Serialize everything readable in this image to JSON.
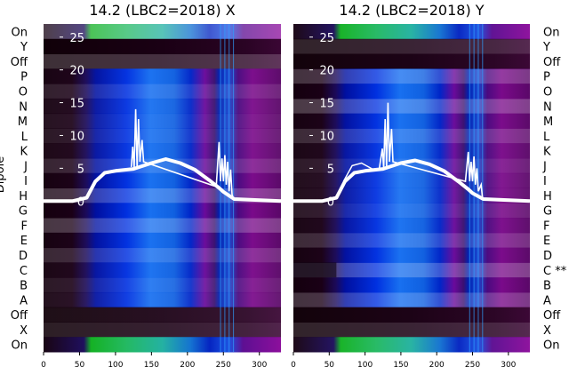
{
  "panels": [
    {
      "title": "14.2 (LBC2=2018) X",
      "row_labels": [
        "On",
        "Y",
        "Off",
        "P",
        "O",
        "N",
        "M",
        "L",
        "K",
        "J",
        "I",
        "H",
        "G",
        "F",
        "E",
        "D",
        "C",
        "B",
        "A",
        "Off",
        "X",
        "On"
      ],
      "ylabel": "Dipole"
    },
    {
      "title": "14.2 (LBC2=2018) Y",
      "row_labels": [
        "On",
        "Y",
        "Off",
        "P",
        "O",
        "N",
        "M",
        "L",
        "K",
        "J",
        "I",
        "H",
        "G",
        "F",
        "E",
        "D",
        "C **",
        "B",
        "A",
        "Off",
        "X",
        "On"
      ],
      "ylabel": ""
    }
  ],
  "colors": {
    "low": "#1a0010",
    "mid": "#0020c8",
    "high": "#20a060",
    "peak": "#10c020",
    "magenta": "#7a0a8a",
    "trace": "#ffffff"
  },
  "chart_data": [
    {
      "type": "heatmap",
      "title": "14.2 (LBC2=2018) X",
      "x_ticks": [
        0,
        50,
        100,
        150,
        200,
        250,
        300
      ],
      "y_ticks": [
        0,
        5,
        10,
        15,
        20,
        25
      ],
      "xlim": [
        0,
        330
      ],
      "ylim": [
        -23,
        27
      ],
      "overlay_thick": [
        [
          0,
          0
        ],
        [
          40,
          0
        ],
        [
          60,
          0.5
        ],
        [
          72,
          3
        ],
        [
          85,
          4.3
        ],
        [
          100,
          4.6
        ],
        [
          125,
          4.9
        ],
        [
          150,
          5.8
        ],
        [
          170,
          6.4
        ],
        [
          190,
          5.8
        ],
        [
          210,
          4.8
        ],
        [
          230,
          3.2
        ],
        [
          244,
          2
        ],
        [
          250,
          1.4
        ],
        [
          265,
          0.3
        ],
        [
          330,
          0
        ]
      ],
      "overlay_spikes": [
        [
          122,
          5.2
        ],
        [
          124,
          8.3
        ],
        [
          126,
          5
        ],
        [
          128,
          14
        ],
        [
          130,
          5
        ],
        [
          132,
          12.5
        ],
        [
          134,
          6
        ],
        [
          137,
          9.3
        ],
        [
          139,
          6
        ],
        [
          240,
          2.2
        ],
        [
          244,
          9
        ],
        [
          246,
          3
        ],
        [
          248,
          6.5
        ],
        [
          250,
          3
        ],
        [
          252,
          7
        ],
        [
          254,
          2.5
        ],
        [
          256,
          6
        ],
        [
          258,
          1.5
        ],
        [
          260,
          4.8
        ],
        [
          262,
          1
        ],
        [
          264,
          0.3
        ]
      ]
    },
    {
      "type": "heatmap",
      "title": "14.2 (LBC2=2018) Y",
      "x_ticks": [
        0,
        50,
        100,
        150,
        200,
        250,
        300
      ],
      "y_ticks": [
        0,
        5,
        10,
        15,
        20,
        25
      ],
      "xlim": [
        0,
        330
      ],
      "ylim": [
        -23,
        27
      ],
      "overlay_thick": [
        [
          0,
          0
        ],
        [
          40,
          0
        ],
        [
          60,
          0.5
        ],
        [
          72,
          3
        ],
        [
          85,
          4.3
        ],
        [
          100,
          4.6
        ],
        [
          125,
          4.9
        ],
        [
          150,
          5.8
        ],
        [
          170,
          6.2
        ],
        [
          190,
          5.6
        ],
        [
          210,
          4.6
        ],
        [
          230,
          3
        ],
        [
          244,
          1.8
        ],
        [
          250,
          1.2
        ],
        [
          265,
          0.3
        ],
        [
          330,
          0
        ]
      ],
      "overlay_thin": [
        [
          70,
          3
        ],
        [
          82,
          5.4
        ],
        [
          95,
          5.8
        ],
        [
          105,
          5.2
        ],
        [
          115,
          4.6
        ]
      ],
      "overlay_spikes": [
        [
          120,
          5
        ],
        [
          124,
          8
        ],
        [
          126,
          5
        ],
        [
          128,
          12.5
        ],
        [
          130,
          5
        ],
        [
          132,
          15
        ],
        [
          134,
          6
        ],
        [
          137,
          11
        ],
        [
          139,
          6
        ],
        [
          240,
          3
        ],
        [
          244,
          7.5
        ],
        [
          246,
          3
        ],
        [
          248,
          6
        ],
        [
          250,
          3
        ],
        [
          252,
          6.8
        ],
        [
          254,
          2.5
        ],
        [
          256,
          5
        ],
        [
          258,
          1.5
        ],
        [
          262,
          2.5
        ],
        [
          264,
          0.3
        ]
      ]
    }
  ]
}
